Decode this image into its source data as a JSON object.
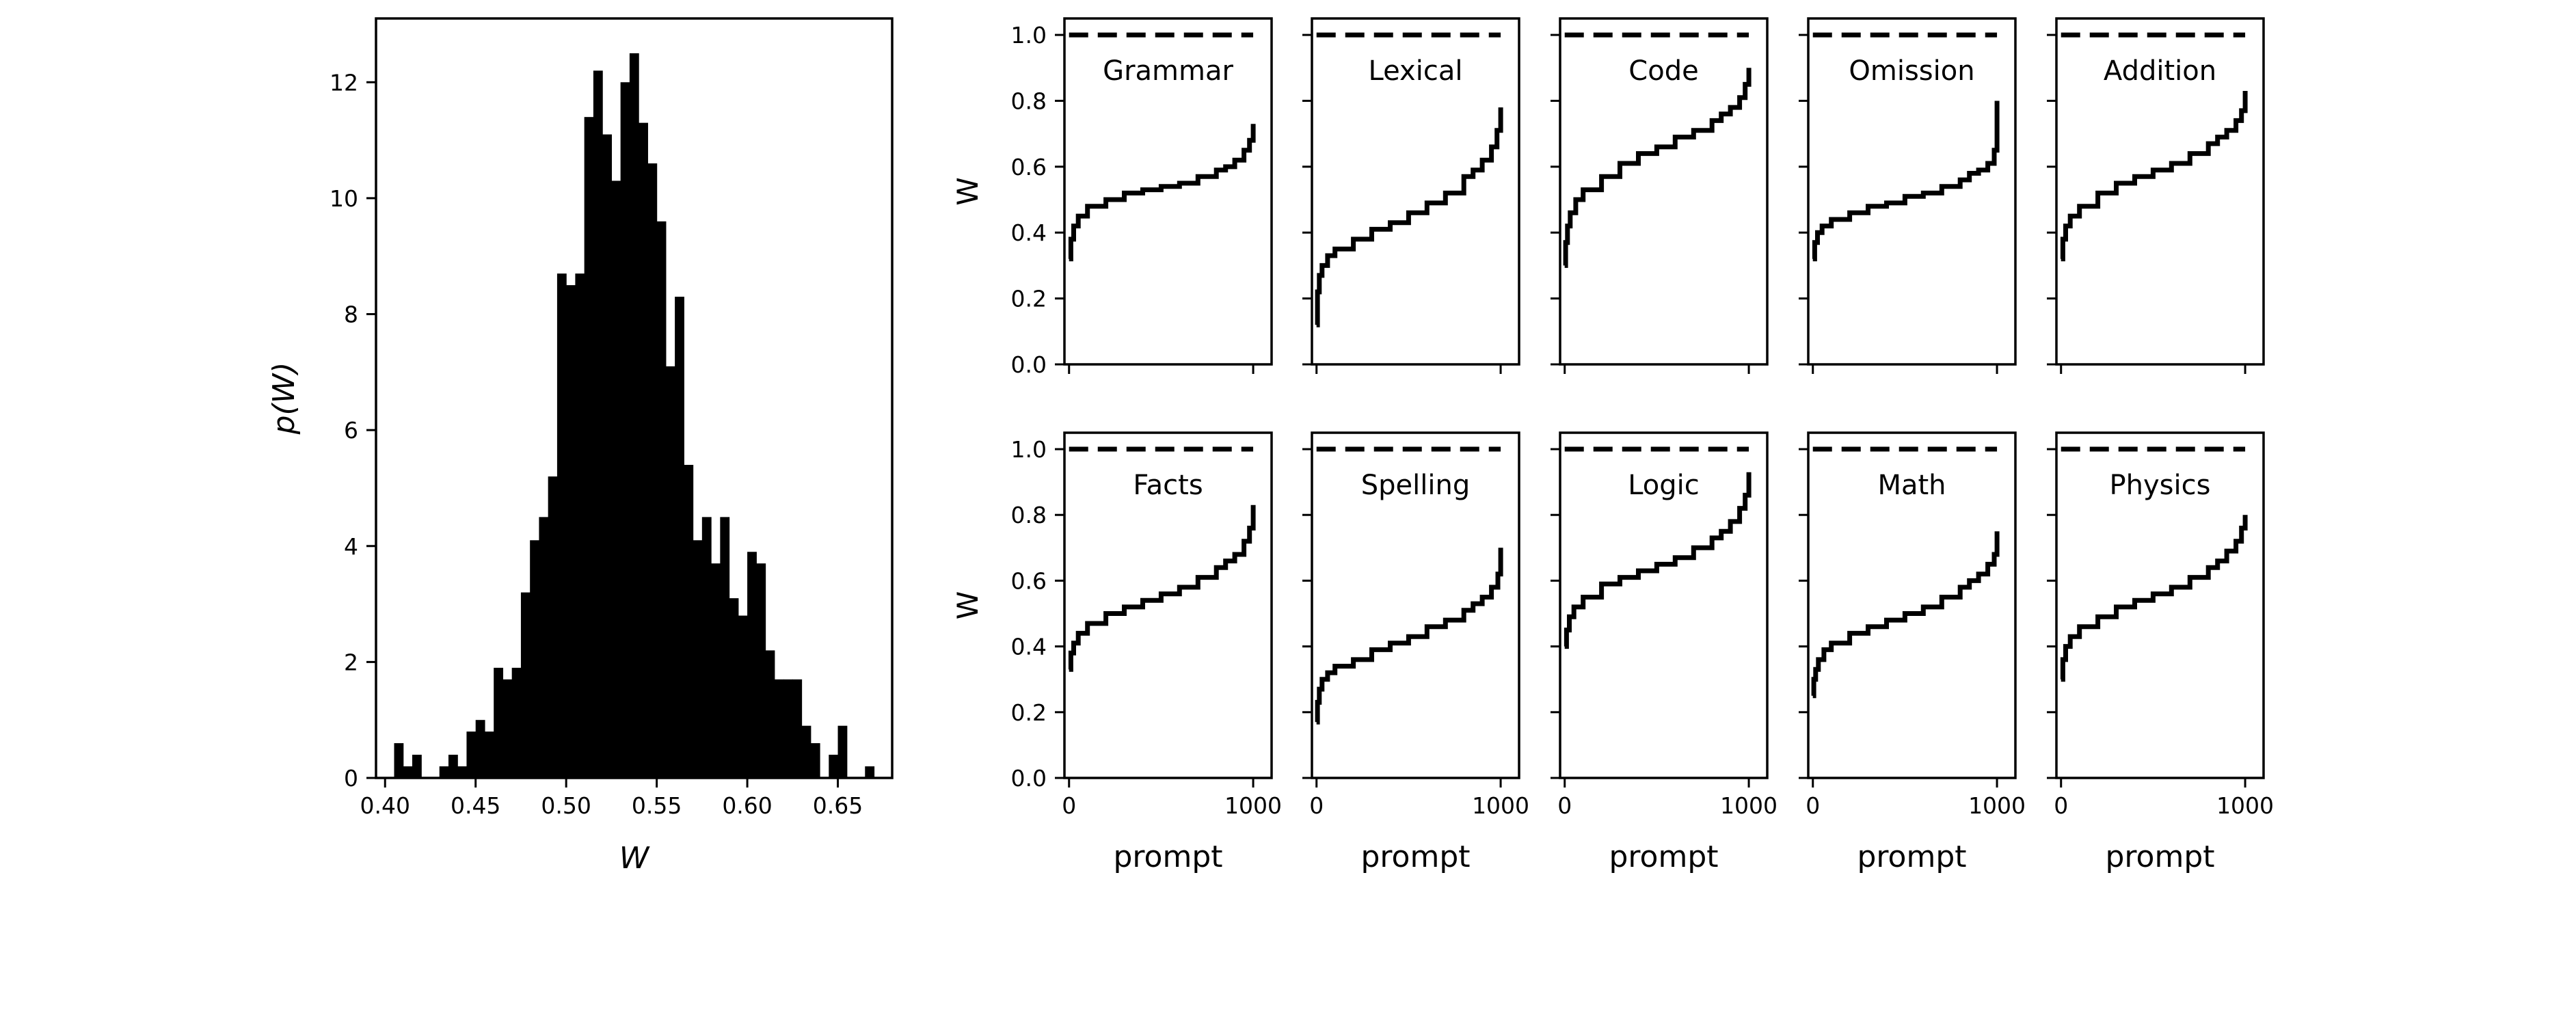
{
  "chart_data": [
    {
      "type": "bar",
      "xlabel": "W",
      "ylabel": "p(W)",
      "xlim": [
        0.395,
        0.68
      ],
      "ylim": [
        0,
        13.1
      ],
      "xticks": [
        "0.40",
        "0.45",
        "0.50",
        "0.55",
        "0.60",
        "0.65"
      ],
      "yticks": [
        "0",
        "2",
        "4",
        "6",
        "8",
        "10",
        "12"
      ],
      "grid": false,
      "bin_width": 0.005,
      "bin_starts": [
        0.405,
        0.41,
        0.415,
        0.42,
        0.425,
        0.43,
        0.435,
        0.44,
        0.445,
        0.45,
        0.455,
        0.46,
        0.465,
        0.47,
        0.475,
        0.48,
        0.485,
        0.49,
        0.495,
        0.5,
        0.505,
        0.51,
        0.515,
        0.52,
        0.525,
        0.53,
        0.535,
        0.54,
        0.545,
        0.55,
        0.555,
        0.56,
        0.565,
        0.57,
        0.575,
        0.58,
        0.585,
        0.59,
        0.595,
        0.6,
        0.605,
        0.61,
        0.615,
        0.62,
        0.625,
        0.63,
        0.635,
        0.64,
        0.645,
        0.65,
        0.655,
        0.66,
        0.665
      ],
      "values": [
        0.6,
        0.2,
        0.4,
        0.0,
        0.0,
        0.2,
        0.4,
        0.2,
        0.8,
        1.0,
        0.8,
        1.9,
        1.7,
        1.9,
        3.2,
        4.1,
        4.5,
        5.2,
        8.7,
        8.5,
        8.7,
        11.4,
        12.2,
        11.1,
        10.3,
        12.0,
        12.5,
        11.3,
        10.6,
        9.6,
        7.1,
        8.3,
        5.4,
        4.1,
        4.5,
        3.7,
        4.5,
        3.1,
        2.8,
        3.9,
        3.7,
        2.2,
        1.7,
        1.7,
        1.7,
        0.9,
        0.6,
        0.0,
        0.4,
        0.9,
        0.0,
        0.0,
        0.2
      ]
    },
    {
      "type": "line",
      "subplots_grid": [
        2,
        5
      ],
      "xlabel": "prompt",
      "ylabel": "W",
      "xlim": [
        -25,
        1100
      ],
      "ylim": [
        0,
        1.05
      ],
      "xticks": [
        "0",
        "1000"
      ],
      "yticks": [
        "0.0",
        "0.2",
        "0.4",
        "0.6",
        "0.8",
        "1.0"
      ],
      "reference_line": {
        "y": 1.0,
        "style": "dashed"
      },
      "grid": false,
      "panels": [
        {
          "title": "Grammar",
          "curve": {
            "x": [
              0,
              10,
              25,
              50,
              100,
              200,
              300,
              400,
              500,
              600,
              700,
              800,
              850,
              900,
              950,
              980,
              1000
            ],
            "y": [
              0.32,
              0.38,
              0.42,
              0.45,
              0.48,
              0.5,
              0.52,
              0.53,
              0.54,
              0.55,
              0.57,
              0.59,
              0.6,
              0.62,
              0.65,
              0.68,
              0.73
            ]
          }
        },
        {
          "title": "Lexical",
          "curve": {
            "x": [
              0,
              5,
              15,
              30,
              60,
              100,
              200,
              300,
              400,
              500,
              600,
              700,
              800,
              850,
              900,
              950,
              980,
              1000
            ],
            "y": [
              0.12,
              0.22,
              0.27,
              0.3,
              0.33,
              0.35,
              0.38,
              0.41,
              0.43,
              0.46,
              0.49,
              0.52,
              0.57,
              0.59,
              0.62,
              0.66,
              0.71,
              0.78
            ]
          }
        },
        {
          "title": "Code",
          "curve": {
            "x": [
              0,
              5,
              15,
              30,
              60,
              100,
              200,
              300,
              400,
              500,
              600,
              700,
              800,
              850,
              900,
              950,
              980,
              1000
            ],
            "y": [
              0.3,
              0.37,
              0.42,
              0.46,
              0.5,
              0.53,
              0.57,
              0.61,
              0.64,
              0.66,
              0.69,
              0.71,
              0.74,
              0.76,
              0.78,
              0.81,
              0.85,
              0.9
            ]
          }
        },
        {
          "title": "Omission",
          "curve": {
            "x": [
              0,
              10,
              25,
              50,
              100,
              200,
              300,
              400,
              500,
              600,
              700,
              800,
              850,
              900,
              950,
              985,
              1000
            ],
            "y": [
              0.32,
              0.37,
              0.4,
              0.42,
              0.44,
              0.46,
              0.48,
              0.49,
              0.51,
              0.52,
              0.54,
              0.56,
              0.58,
              0.59,
              0.61,
              0.65,
              0.8
            ]
          }
        },
        {
          "title": "Addition",
          "curve": {
            "x": [
              0,
              10,
              25,
              50,
              100,
              200,
              300,
              400,
              500,
              600,
              700,
              800,
              850,
              900,
              950,
              980,
              1000
            ],
            "y": [
              0.32,
              0.38,
              0.42,
              0.45,
              0.48,
              0.52,
              0.55,
              0.57,
              0.59,
              0.61,
              0.64,
              0.67,
              0.69,
              0.71,
              0.74,
              0.77,
              0.83
            ]
          }
        },
        {
          "title": "Facts",
          "curve": {
            "x": [
              0,
              10,
              25,
              50,
              100,
              200,
              300,
              400,
              500,
              600,
              700,
              800,
              850,
              900,
              950,
              980,
              1000
            ],
            "y": [
              0.33,
              0.38,
              0.41,
              0.44,
              0.47,
              0.5,
              0.52,
              0.54,
              0.56,
              0.58,
              0.61,
              0.64,
              0.66,
              0.68,
              0.72,
              0.76,
              0.83
            ]
          }
        },
        {
          "title": "Spelling",
          "curve": {
            "x": [
              0,
              5,
              15,
              30,
              60,
              100,
              200,
              300,
              400,
              500,
              600,
              700,
              800,
              850,
              900,
              950,
              985,
              1000
            ],
            "y": [
              0.17,
              0.23,
              0.27,
              0.3,
              0.32,
              0.34,
              0.36,
              0.39,
              0.41,
              0.43,
              0.46,
              0.48,
              0.51,
              0.53,
              0.55,
              0.58,
              0.62,
              0.7
            ]
          }
        },
        {
          "title": "Logic",
          "curve": {
            "x": [
              0,
              10,
              25,
              50,
              100,
              200,
              300,
              400,
              500,
              600,
              700,
              800,
              850,
              900,
              950,
              980,
              1000
            ],
            "y": [
              0.4,
              0.45,
              0.49,
              0.52,
              0.55,
              0.59,
              0.61,
              0.63,
              0.65,
              0.67,
              0.7,
              0.73,
              0.75,
              0.78,
              0.82,
              0.86,
              0.93
            ]
          }
        },
        {
          "title": "Math",
          "curve": {
            "x": [
              0,
              5,
              15,
              30,
              60,
              100,
              200,
              300,
              400,
              500,
              600,
              700,
              800,
              850,
              900,
              950,
              985,
              1000
            ],
            "y": [
              0.25,
              0.3,
              0.33,
              0.36,
              0.39,
              0.41,
              0.44,
              0.46,
              0.48,
              0.5,
              0.52,
              0.55,
              0.58,
              0.6,
              0.62,
              0.65,
              0.68,
              0.75
            ]
          }
        },
        {
          "title": "Physics",
          "curve": {
            "x": [
              0,
              10,
              25,
              50,
              100,
              200,
              300,
              400,
              500,
              600,
              700,
              800,
              850,
              900,
              950,
              980,
              1000
            ],
            "y": [
              0.3,
              0.36,
              0.4,
              0.43,
              0.46,
              0.49,
              0.52,
              0.54,
              0.56,
              0.58,
              0.61,
              0.64,
              0.66,
              0.69,
              0.72,
              0.76,
              0.8
            ]
          }
        }
      ]
    }
  ]
}
